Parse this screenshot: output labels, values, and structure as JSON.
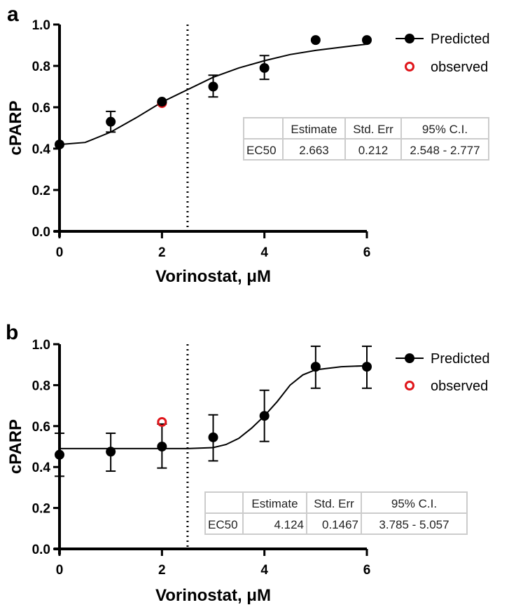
{
  "chart_data": [
    {
      "panel": "a",
      "type": "scatter",
      "xlabel": "Vorinostat, μM",
      "ylabel": "cPARP",
      "xlim": [
        0,
        6
      ],
      "ylim": [
        0,
        1.0
      ],
      "xticks": [
        "0",
        "2",
        "4",
        "6"
      ],
      "yticks": [
        "0.0",
        "0.2",
        "0.4",
        "0.6",
        "0.8",
        "1.0"
      ],
      "vline_x": 2.5,
      "legend": {
        "placement": "top-right",
        "entries": [
          "Predicted",
          "observed"
        ]
      },
      "series": [
        {
          "name": "Predicted",
          "color": "#000000",
          "x": [
            0,
            1,
            2,
            3,
            4,
            5,
            6
          ],
          "y": [
            0.42,
            0.53,
            0.625,
            0.7,
            0.79,
            0.925,
            0.925
          ],
          "err_low": [
            0.42,
            0.48,
            0.625,
            0.65,
            0.735,
            0.925,
            0.925
          ],
          "err_high": [
            0.42,
            0.58,
            0.625,
            0.755,
            0.85,
            0.925,
            0.925
          ]
        },
        {
          "name": "observed",
          "color": "#e0161b",
          "x": [
            2
          ],
          "y": [
            0.62
          ]
        }
      ],
      "fit_curve": {
        "x": [
          0,
          0.5,
          1,
          1.5,
          2,
          2.5,
          3,
          3.5,
          4,
          4.5,
          5,
          5.5,
          6
        ],
        "y": [
          0.42,
          0.43,
          0.48,
          0.55,
          0.625,
          0.685,
          0.745,
          0.79,
          0.825,
          0.855,
          0.875,
          0.89,
          0.905
        ]
      },
      "table": {
        "headers": [
          "",
          "Estimate",
          "Std. Err",
          "95% C.I."
        ],
        "row": [
          "EC50",
          "2.663",
          "0.212",
          "2.548 - 2.777"
        ]
      }
    },
    {
      "panel": "b",
      "type": "scatter",
      "xlabel": "Vorinostat, μM",
      "ylabel": "cPARP",
      "xlim": [
        0,
        6
      ],
      "ylim": [
        0,
        1.0
      ],
      "xticks": [
        "0",
        "2",
        "4",
        "6"
      ],
      "yticks": [
        "0.0",
        "0.2",
        "0.4",
        "0.6",
        "0.8",
        "1.0"
      ],
      "vline_x": 2.5,
      "legend": {
        "placement": "top-right",
        "entries": [
          "Predicted",
          "observed"
        ]
      },
      "series": [
        {
          "name": "Predicted",
          "color": "#000000",
          "x": [
            0,
            1,
            2,
            3,
            4,
            5,
            6
          ],
          "y": [
            0.46,
            0.475,
            0.5,
            0.545,
            0.65,
            0.89,
            0.89
          ],
          "err_low": [
            0.355,
            0.38,
            0.395,
            0.43,
            0.525,
            0.785,
            0.785
          ],
          "err_high": [
            0.565,
            0.565,
            0.61,
            0.655,
            0.775,
            0.99,
            0.99
          ]
        },
        {
          "name": "observed",
          "color": "#e0161b",
          "x": [
            2
          ],
          "y": [
            0.62
          ]
        }
      ],
      "fit_curve": {
        "x": [
          0,
          0.5,
          1,
          1.5,
          2,
          2.5,
          3,
          3.25,
          3.5,
          3.75,
          4,
          4.25,
          4.5,
          4.75,
          5,
          5.5,
          6
        ],
        "y": [
          0.49,
          0.49,
          0.49,
          0.49,
          0.49,
          0.49,
          0.495,
          0.51,
          0.54,
          0.59,
          0.65,
          0.72,
          0.8,
          0.85,
          0.875,
          0.89,
          0.895
        ]
      },
      "table": {
        "headers": [
          "",
          "Estimate",
          "Std. Err",
          "95% C.I."
        ],
        "row": [
          "EC50",
          "4.124",
          "0.1467",
          "3.785 - 5.057"
        ]
      }
    }
  ]
}
